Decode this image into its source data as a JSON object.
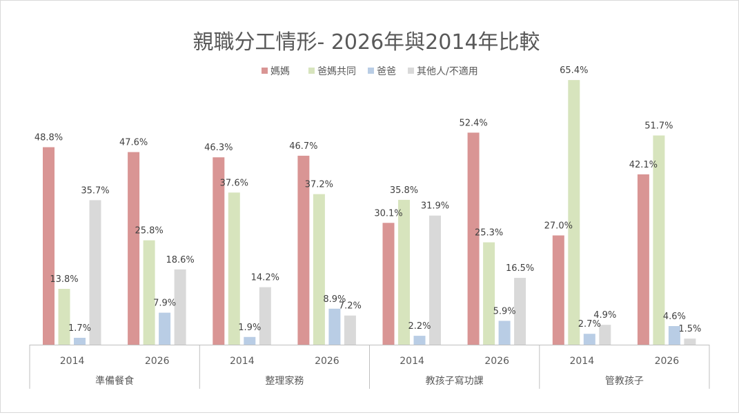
{
  "chart_data": {
    "type": "bar",
    "title": "親職分工情形- 2026年與2014年比較",
    "groups": [
      "準備餐食",
      "整理家務",
      "教孩子寫功課",
      "管教孩子"
    ],
    "years": [
      "2014",
      "2026"
    ],
    "value_suffix": "%",
    "ylim": [
      0,
      70
    ],
    "grid": false,
    "legend_position": "top",
    "series": [
      {
        "name": "媽媽",
        "color": "#d99594",
        "values": [
          48.8,
          47.6,
          46.3,
          46.7,
          30.1,
          52.4,
          27.0,
          42.1
        ],
        "labels": [
          "48.8%",
          "47.6%",
          "46.3%",
          "46.7%",
          "30.1%",
          "52.4%",
          "27.0%",
          "42.1%"
        ]
      },
      {
        "name": "爸媽共同",
        "color": "#d7e4bd",
        "values": [
          13.8,
          25.8,
          37.6,
          37.2,
          35.8,
          25.3,
          65.4,
          51.7
        ],
        "labels": [
          "13.8%",
          "25.8%",
          "37.6%",
          "37.2%",
          "35.8%",
          "25.3%",
          "65.4%",
          "51.7%"
        ]
      },
      {
        "name": "爸爸",
        "color": "#b9cde5",
        "values": [
          1.7,
          7.9,
          1.9,
          8.9,
          2.2,
          5.9,
          2.7,
          4.6
        ],
        "labels": [
          "1.7%",
          "7.9%",
          "1.9%",
          "8.9%",
          "2.2%",
          "5.9%",
          "2.7%",
          "4.6%"
        ]
      },
      {
        "name": "其他人/不適用",
        "color": "#d9d9d9",
        "values": [
          35.7,
          18.6,
          14.2,
          7.2,
          31.9,
          16.5,
          4.9,
          1.5
        ],
        "labels": [
          "35.7%",
          "18.6%",
          "14.2%",
          "7.2%",
          "31.9%",
          "16.5%",
          "4.9%",
          "1.5%"
        ]
      }
    ]
  }
}
